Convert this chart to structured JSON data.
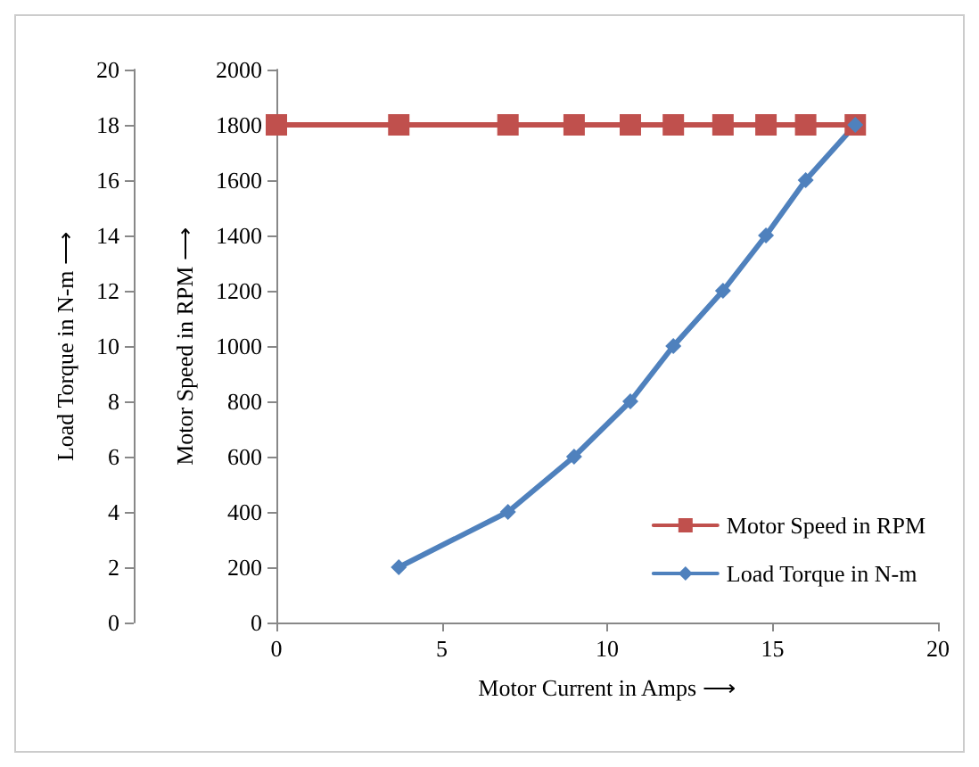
{
  "chart_data": {
    "type": "line",
    "xlabel": "Motor Current in Amps ⟶",
    "ylabel": "Motor Speed in RPM ⟶",
    "y2label": "Load Torque in N-m ⟶",
    "xlim": [
      0,
      20
    ],
    "xticks": [
      0,
      5,
      10,
      15,
      20
    ],
    "ylim": [
      0,
      2000
    ],
    "yticks": [
      0,
      200,
      400,
      600,
      800,
      1000,
      1200,
      1400,
      1600,
      1800,
      2000
    ],
    "y2lim": [
      0,
      20
    ],
    "y2ticks": [
      0,
      2,
      4,
      6,
      8,
      10,
      12,
      14,
      16,
      18,
      20
    ],
    "series": [
      {
        "name": "Motor Speed in RPM",
        "color": "#c0504d",
        "marker": "square",
        "x": [
          0,
          3.7,
          7,
          9,
          10.7,
          12,
          13.5,
          14.8,
          16,
          17.5
        ],
        "values": [
          1800,
          1800,
          1800,
          1800,
          1800,
          1800,
          1800,
          1800,
          1800,
          1800
        ]
      },
      {
        "name": "Load Torque in N-m",
        "color": "#4f81bd",
        "marker": "diamond",
        "axis": "y2",
        "x": [
          3.7,
          7,
          9,
          10.7,
          12,
          13.5,
          14.8,
          16,
          17.5
        ],
        "values": [
          2,
          4,
          6,
          8,
          10,
          12,
          14,
          16,
          18
        ]
      }
    ],
    "legend": "bottom right",
    "grid": false
  }
}
